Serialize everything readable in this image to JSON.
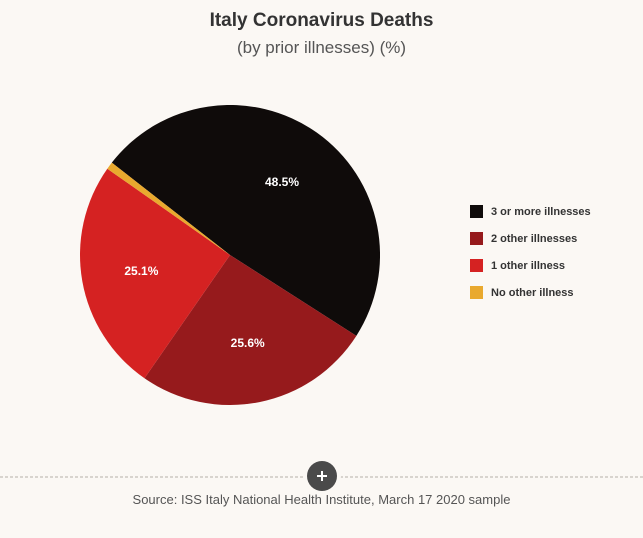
{
  "title": "Italy Coronavirus Deaths",
  "subtitle": "(by prior illnesses) (%)",
  "source": "Source: ISS Italy National Health Institute, March 17 2020 sample",
  "chart": {
    "type": "pie",
    "radius": 150,
    "start_angle_deg": 218,
    "background_color": "#fbf8f4",
    "title_fontsize": 19,
    "subtitle_fontsize": 17,
    "label_fontsize": 12,
    "label_color": "#ffffff",
    "legend_fontsize": 11,
    "slices": [
      {
        "label": "3 or more illnesses",
        "value": 48.5,
        "display": "48.5%",
        "color": "#0f0b0a",
        "show_label": true
      },
      {
        "label": "2 other illnesses",
        "value": 25.6,
        "display": "25.6%",
        "color": "#961a1c",
        "show_label": true
      },
      {
        "label": "1 other illness",
        "value": 25.1,
        "display": "25.1%",
        "color": "#d52222",
        "show_label": true
      },
      {
        "label": "No other illness",
        "value": 0.8,
        "display": "0.8%",
        "color": "#e9a92e",
        "show_label": false
      }
    ]
  },
  "controls": {
    "expand_button_title": "Chart context menu"
  }
}
